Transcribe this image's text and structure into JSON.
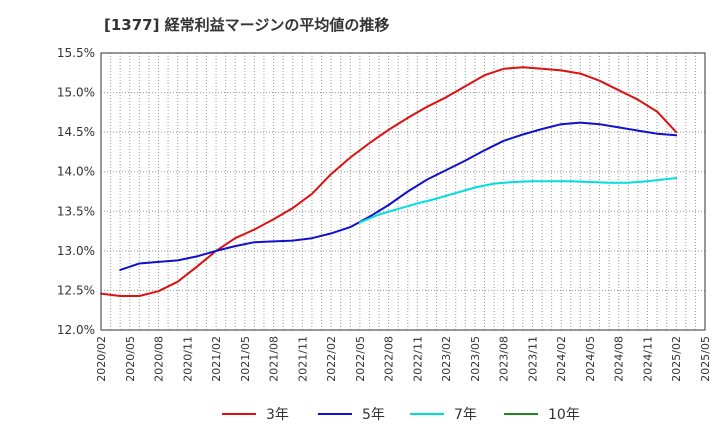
{
  "chart_data": {
    "type": "line",
    "title": "[1377]  経常利益マージンの平均値の推移",
    "xlabel": "",
    "ylabel": "",
    "ylim": [
      12.0,
      15.5
    ],
    "yticks": [
      "12.0%",
      "12.5%",
      "13.0%",
      "13.5%",
      "14.0%",
      "14.5%",
      "15.0%",
      "15.5%"
    ],
    "xticks": [
      "2020/02",
      "2020/05",
      "2020/08",
      "2020/11",
      "2021/02",
      "2021/05",
      "2021/08",
      "2021/11",
      "2022/02",
      "2022/05",
      "2022/08",
      "2022/11",
      "2023/02",
      "2023/05",
      "2023/08",
      "2023/11",
      "2024/02",
      "2024/05",
      "2024/08",
      "2024/11",
      "2025/02",
      "2025/05"
    ],
    "grid": true,
    "legend_position": "bottom",
    "series": [
      {
        "name": "3年",
        "color": "#dd1111",
        "points": [
          [
            "2020/02",
            12.46
          ],
          [
            "2020/04",
            12.43
          ],
          [
            "2020/06",
            12.43
          ],
          [
            "2020/08",
            12.49
          ],
          [
            "2020/10",
            12.61
          ],
          [
            "2020/12",
            12.8
          ],
          [
            "2021/02",
            13.0
          ],
          [
            "2021/04",
            13.16
          ],
          [
            "2021/06",
            13.27
          ],
          [
            "2021/08",
            13.4
          ],
          [
            "2021/10",
            13.54
          ],
          [
            "2021/12",
            13.72
          ],
          [
            "2022/02",
            13.97
          ],
          [
            "2022/04",
            14.18
          ],
          [
            "2022/06",
            14.36
          ],
          [
            "2022/08",
            14.53
          ],
          [
            "2022/10",
            14.68
          ],
          [
            "2022/12",
            14.82
          ],
          [
            "2023/02",
            14.94
          ],
          [
            "2023/04",
            15.08
          ],
          [
            "2023/06",
            15.22
          ],
          [
            "2023/08",
            15.3
          ],
          [
            "2023/10",
            15.32
          ],
          [
            "2023/12",
            15.3
          ],
          [
            "2024/02",
            15.28
          ],
          [
            "2024/04",
            15.24
          ],
          [
            "2024/06",
            15.15
          ],
          [
            "2024/08",
            15.03
          ],
          [
            "2024/10",
            14.91
          ],
          [
            "2024/12",
            14.76
          ],
          [
            "2025/02",
            14.5
          ]
        ]
      },
      {
        "name": "5年",
        "color": "#1111cc",
        "points": [
          [
            "2020/04",
            12.76
          ],
          [
            "2020/06",
            12.84
          ],
          [
            "2020/08",
            12.86
          ],
          [
            "2020/10",
            12.88
          ],
          [
            "2020/12",
            12.93
          ],
          [
            "2021/02",
            13.0
          ],
          [
            "2021/04",
            13.06
          ],
          [
            "2021/06",
            13.11
          ],
          [
            "2021/08",
            13.12
          ],
          [
            "2021/10",
            13.13
          ],
          [
            "2021/12",
            13.16
          ],
          [
            "2022/02",
            13.22
          ],
          [
            "2022/04",
            13.3
          ],
          [
            "2022/06",
            13.43
          ],
          [
            "2022/08",
            13.58
          ],
          [
            "2022/10",
            13.75
          ],
          [
            "2022/12",
            13.9
          ],
          [
            "2023/02",
            14.02
          ],
          [
            "2023/04",
            14.14
          ],
          [
            "2023/06",
            14.27
          ],
          [
            "2023/08",
            14.39
          ],
          [
            "2023/10",
            14.47
          ],
          [
            "2023/12",
            14.54
          ],
          [
            "2024/02",
            14.6
          ],
          [
            "2024/04",
            14.62
          ],
          [
            "2024/06",
            14.6
          ],
          [
            "2024/08",
            14.56
          ],
          [
            "2024/10",
            14.52
          ],
          [
            "2024/12",
            14.48
          ],
          [
            "2025/02",
            14.46
          ]
        ]
      },
      {
        "name": "7年",
        "color": "#00dddd",
        "points": [
          [
            "2022/05",
            13.36
          ],
          [
            "2022/07",
            13.46
          ],
          [
            "2022/09",
            13.53
          ],
          [
            "2022/11",
            13.6
          ],
          [
            "2023/01",
            13.66
          ],
          [
            "2023/03",
            13.73
          ],
          [
            "2023/05",
            13.8
          ],
          [
            "2023/07",
            13.85
          ],
          [
            "2023/09",
            13.87
          ],
          [
            "2023/11",
            13.88
          ],
          [
            "2024/01",
            13.88
          ],
          [
            "2024/03",
            13.88
          ],
          [
            "2024/05",
            13.87
          ],
          [
            "2024/07",
            13.86
          ],
          [
            "2024/09",
            13.86
          ],
          [
            "2024/11",
            13.88
          ],
          [
            "2025/02",
            13.92
          ]
        ]
      },
      {
        "name": "10年",
        "color": "#228822",
        "points": []
      }
    ]
  }
}
